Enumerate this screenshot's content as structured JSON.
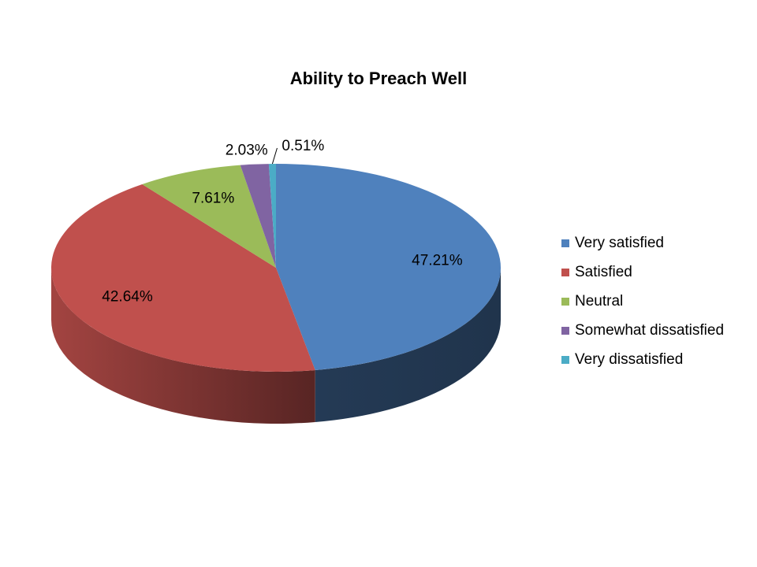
{
  "chart_data": {
    "type": "pie",
    "title": "Ability to Preach Well",
    "categories": [
      "Very satisfied",
      "Satisfied",
      "Neutral",
      "Somewhat dissatisfied",
      "Very dissatisfied"
    ],
    "values": [
      47.21,
      42.64,
      7.61,
      2.03,
      0.51
    ],
    "value_labels": [
      "47.21%",
      "42.64%",
      "7.61%",
      "2.03%",
      "0.51%"
    ],
    "colors": [
      "#4f81bd",
      "#c0504d",
      "#9bbb59",
      "#8064a2",
      "#4bacc6"
    ],
    "legend": "right"
  }
}
